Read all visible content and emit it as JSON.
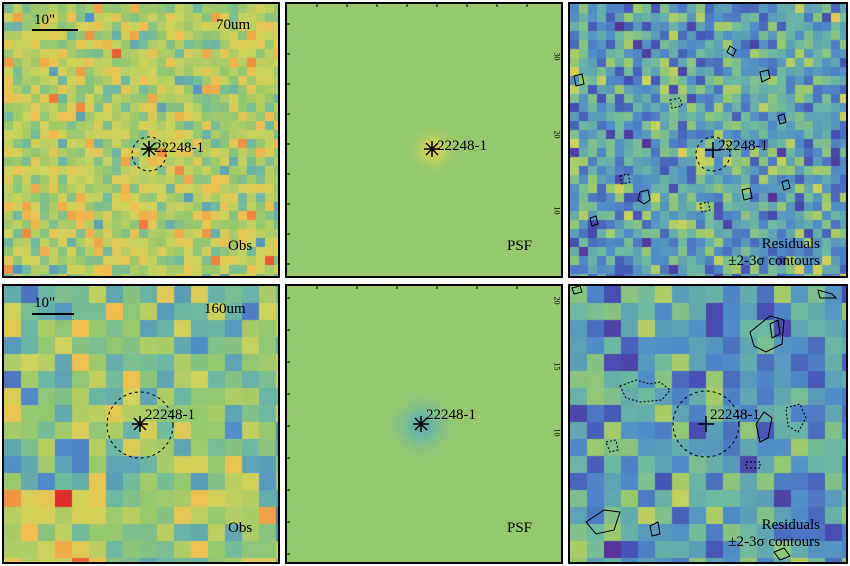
{
  "source_name": "22248-1",
  "scale_bar_label": "10\"",
  "rows": [
    {
      "band": "70um",
      "panels": {
        "obs": "Obs",
        "psf": "PSF",
        "res_line1": "Residuals",
        "res_line2": "±2-3σ contours"
      }
    },
    {
      "band": "160um",
      "panels": {
        "obs": "Obs",
        "psf": "PSF",
        "res_line1": "Residuals",
        "res_line2": "±2-3σ contours"
      }
    }
  ],
  "psf_axis_ticks": {
    "row0": [
      "30",
      "20",
      "10"
    ],
    "row1": [
      "20",
      "15",
      "10"
    ]
  },
  "colors": {
    "background_green": "#88b866",
    "frame": "#000000"
  }
}
